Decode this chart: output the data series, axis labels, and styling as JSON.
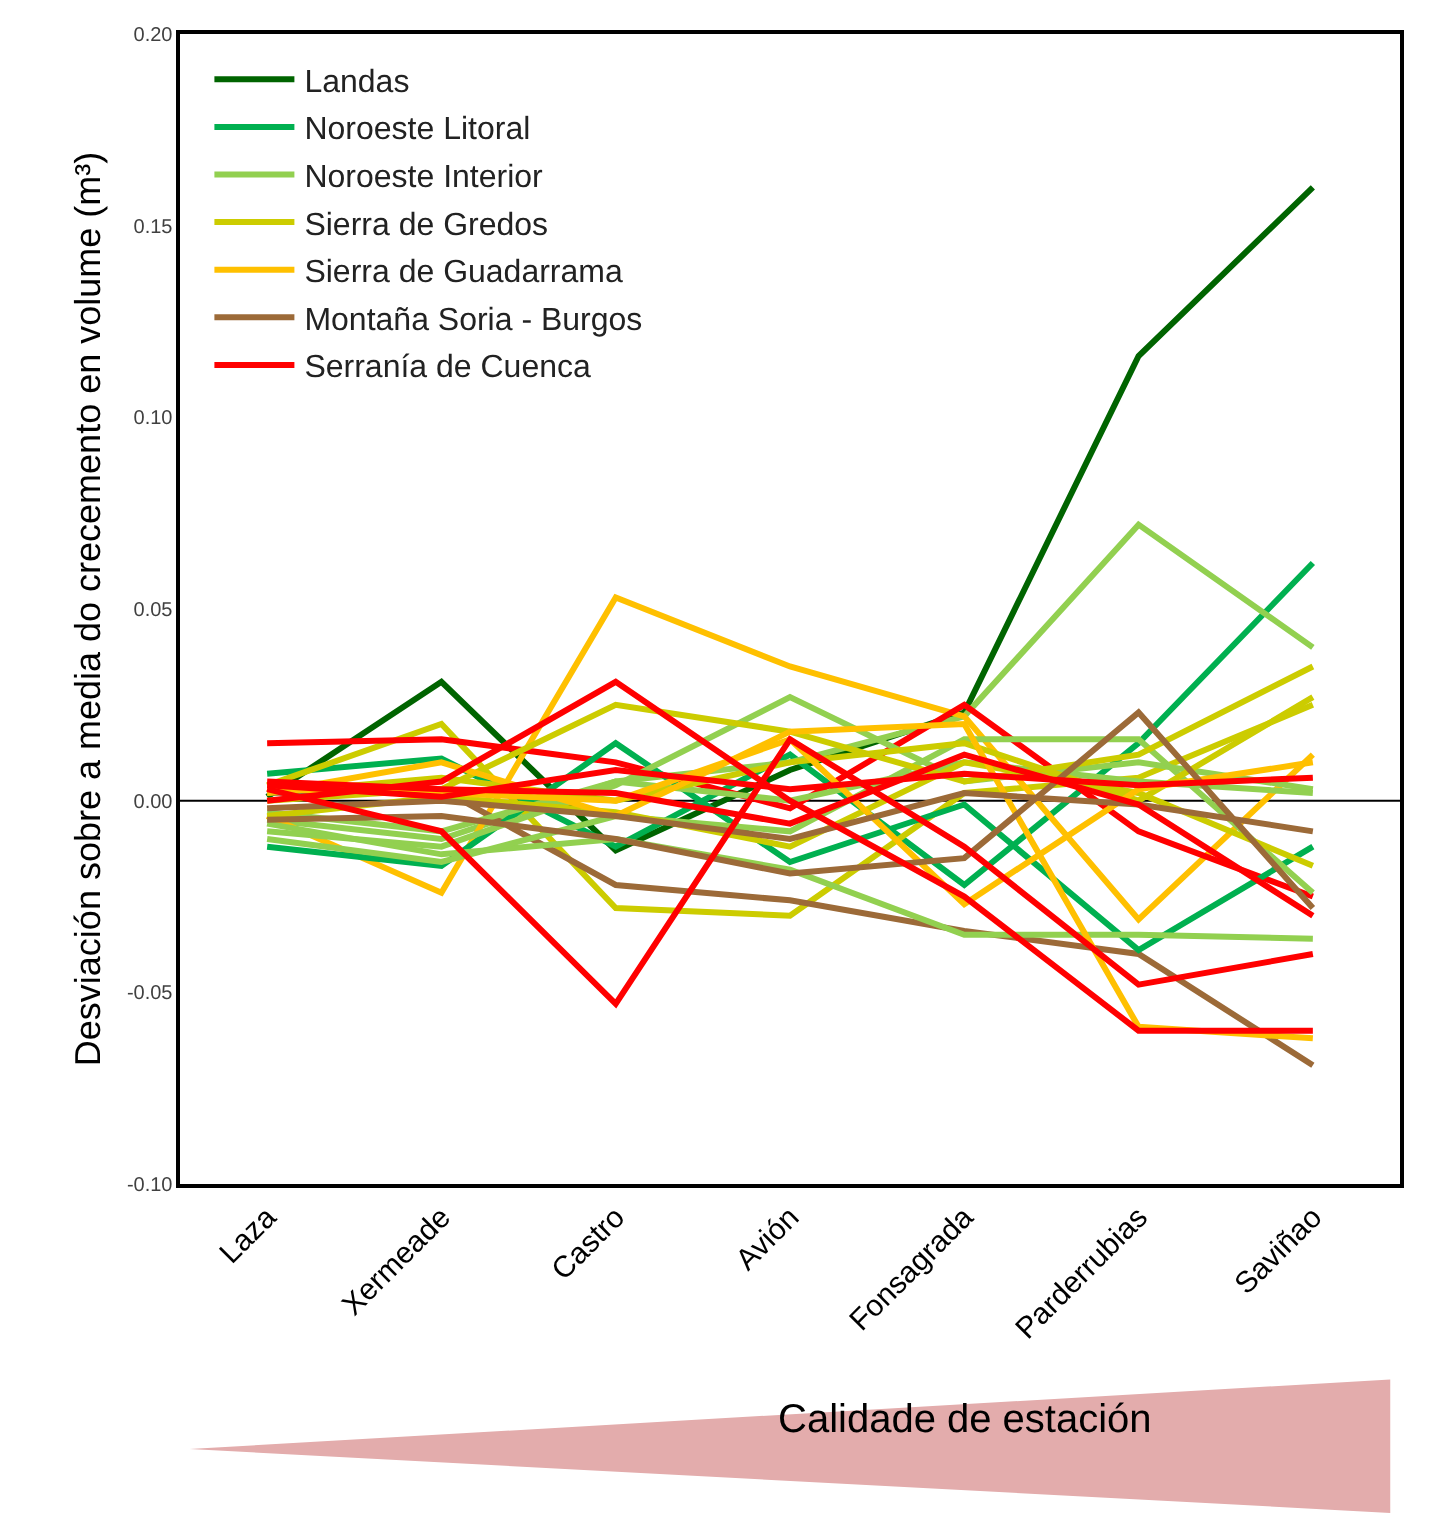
{
  "chart_data": {
    "type": "line",
    "ylabel": "Desviación sobre a media do crecemento en volume (m³)",
    "categories": [
      "Laza",
      "Xermeade",
      "Castro",
      "Avión",
      "Fonsagrada",
      "Parderrubias",
      "Saviñao"
    ],
    "ylim": [
      -0.1,
      0.2
    ],
    "yticks": [
      {
        "value": -0.1,
        "label": "-0.10"
      },
      {
        "value": -0.05,
        "label": "-0.05"
      },
      {
        "value": 0,
        "label": "0.00"
      },
      {
        "value": 0.05,
        "label": "0.05"
      },
      {
        "value": 0.1,
        "label": "0.10"
      },
      {
        "value": 0.15,
        "label": "0.15"
      },
      {
        "value": 0.2,
        "label": "0.20"
      }
    ],
    "grid": false,
    "legend": "top left",
    "marker": "none",
    "line_style": "solid",
    "ref_lines": [
      {
        "axis": "y",
        "value": 0,
        "color": "#000000"
      }
    ],
    "annotations": [
      "Calidade de estación"
    ],
    "series": [
      {
        "name": "Landas",
        "color": "#006400",
        "values": [
          0.001,
          0.031,
          -0.013,
          0.008,
          0.023,
          0.116,
          0.16
        ]
      },
      {
        "name": "Noroeste Litoral",
        "color": "#00b050",
        "values": [
          0.007,
          0.011,
          -0.012,
          0.012,
          -0.022,
          0.015,
          0.062
        ]
      },
      {
        "name": "Noroeste Interior",
        "color": "#92d050",
        "values": [
          -0.005,
          -0.01,
          0.005,
          0.01,
          0.022,
          0.072,
          0.04
        ]
      },
      {
        "name": "Sierra de Gredos",
        "color": "#cccc00",
        "values": [
          0.004,
          0.02,
          -0.028,
          -0.03,
          0.002,
          0.006,
          0.025
        ]
      },
      {
        "name": "Sierra de Guadarrama",
        "color": "#ffc000",
        "values": [
          -0.004,
          -0.024,
          0.053,
          0.035,
          0.022,
          -0.031,
          0.012
        ]
      },
      {
        "name": "Montaña Soria - Burgos",
        "color": "#9c6a38",
        "values": [
          0.002,
          0.003,
          -0.022,
          -0.026,
          -0.034,
          -0.04,
          -0.069
        ]
      },
      {
        "name": "Serranía de Cuenca",
        "color": "#ff0000",
        "values": [
          0.015,
          0.016,
          0.01,
          -0.002,
          0.025,
          -0.008,
          -0.025
        ]
      },
      {
        "color": "#00b050",
        "values": [
          -0.012,
          -0.017,
          0.015,
          -0.016,
          -0.001,
          -0.039,
          -0.012
        ]
      },
      {
        "color": "#92d050",
        "values": [
          -0.008,
          -0.012,
          0.004,
          0.027,
          0.005,
          0.01,
          0.003
        ]
      },
      {
        "color": "#92d050",
        "values": [
          -0.006,
          -0.014,
          -0.01,
          -0.018,
          -0.035,
          -0.035,
          -0.036
        ]
      },
      {
        "color": "#92d050",
        "values": [
          -0.01,
          -0.016,
          -0.004,
          -0.008,
          0.016,
          0.016,
          -0.024
        ]
      },
      {
        "color": "#92d050",
        "values": [
          -0.003,
          -0.008,
          0.005,
          0.0,
          0.01,
          0.005,
          0.002
        ]
      },
      {
        "color": "#cccc00",
        "values": [
          0.0,
          0.003,
          0.025,
          0.018,
          0.005,
          0.012,
          0.035
        ]
      },
      {
        "color": "#cccc00",
        "values": [
          -0.004,
          0.001,
          -0.003,
          -0.012,
          0.01,
          0.002,
          -0.017
        ]
      },
      {
        "color": "#cccc00",
        "values": [
          0.002,
          0.006,
          0.0,
          0.01,
          0.015,
          0.0,
          0.027
        ]
      },
      {
        "color": "#ffc000",
        "values": [
          0.002,
          0.01,
          -0.004,
          0.018,
          0.02,
          -0.059,
          -0.062
        ]
      },
      {
        "color": "#ffc000",
        "values": [
          0.003,
          0.002,
          0.0,
          0.016,
          -0.027,
          0.003,
          0.01
        ]
      },
      {
        "color": "#9c6a38",
        "values": [
          -0.005,
          -0.004,
          -0.01,
          -0.019,
          -0.015,
          0.023,
          -0.028
        ]
      },
      {
        "color": "#9c6a38",
        "values": [
          -0.002,
          0.0,
          -0.004,
          -0.01,
          0.002,
          -0.001,
          -0.008
        ]
      },
      {
        "color": "#ff0000",
        "values": [
          0.003,
          -0.008,
          -0.053,
          0.016,
          -0.012,
          -0.048,
          -0.04
        ]
      },
      {
        "color": "#ff0000",
        "values": [
          0.0,
          0.005,
          0.031,
          0.0,
          -0.025,
          -0.06,
          -0.06
        ]
      },
      {
        "color": "#ff0000",
        "values": [
          0.005,
          0.003,
          0.002,
          -0.006,
          0.012,
          -0.001,
          -0.03
        ]
      },
      {
        "color": "#ff0000",
        "values": [
          0.004,
          0.001,
          0.008,
          0.003,
          0.007,
          0.004,
          0.006
        ]
      }
    ]
  }
}
